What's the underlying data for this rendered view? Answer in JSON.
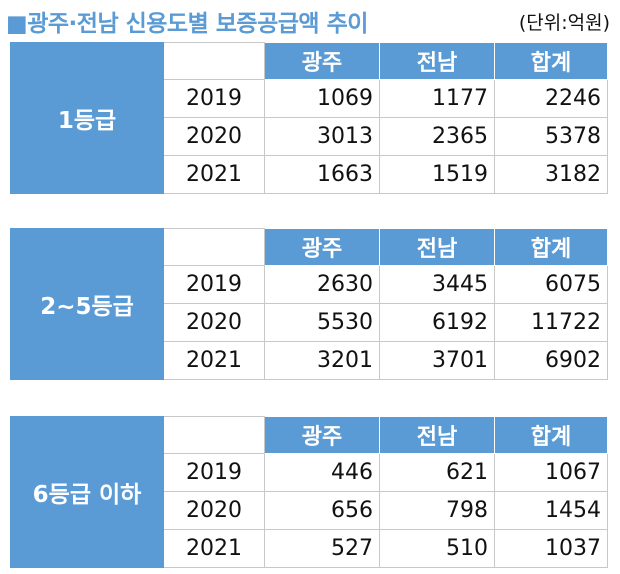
{
  "title": "■광주·전남 신용도별 보증공급액 추이",
  "unit": "(단위:억원)",
  "columns": [
    "광주",
    "전남",
    "합계"
  ],
  "groups": [
    {
      "grade": "1등급",
      "rows": [
        {
          "year": "2019",
          "values": [
            "1069",
            "1177",
            "2246"
          ]
        },
        {
          "year": "2020",
          "values": [
            "3013",
            "2365",
            "5378"
          ]
        },
        {
          "year": "2021",
          "values": [
            "1663",
            "1519",
            "3182"
          ]
        }
      ]
    },
    {
      "grade": "2~5등급",
      "rows": [
        {
          "year": "2019",
          "values": [
            "2630",
            "3445",
            "6075"
          ]
        },
        {
          "year": "2020",
          "values": [
            "5530",
            "6192",
            "11722"
          ]
        },
        {
          "year": "2021",
          "values": [
            "3201",
            "3701",
            "6902"
          ]
        }
      ]
    },
    {
      "grade": "6등급 이하",
      "rows": [
        {
          "year": "2019",
          "values": [
            "446",
            "621",
            "1067"
          ]
        },
        {
          "year": "2020",
          "values": [
            "656",
            "798",
            "1454"
          ]
        },
        {
          "year": "2021",
          "values": [
            "527",
            "510",
            "1037"
          ]
        }
      ]
    }
  ],
  "colors": {
    "header_blue": "#5b9bd5",
    "border": "#c8c8c8"
  }
}
